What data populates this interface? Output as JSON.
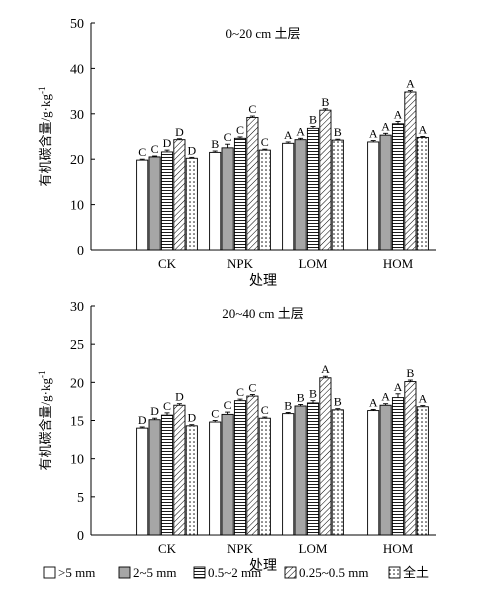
{
  "chart_data": [
    {
      "type": "bar",
      "title": "0~20 cm 土层",
      "xlabel": "处理",
      "ylabel": "有机碳含量/g·kg",
      "ylabel_sup": "-1",
      "ylim": [
        0,
        50
      ],
      "yticks": [
        0,
        10,
        20,
        30,
        40,
        50
      ],
      "categories": [
        "CK",
        "NPK",
        "LOM",
        "HOM"
      ],
      "series": [
        {
          "name": ">5 mm",
          "values": [
            19.8,
            21.5,
            23.5,
            23.8
          ],
          "errors": [
            0.2,
            0.3,
            0.3,
            0.3
          ],
          "letters": [
            "C",
            "B",
            "A",
            "A"
          ]
        },
        {
          "name": "2~5 mm",
          "values": [
            20.5,
            22.5,
            24.3,
            25.3
          ],
          "errors": [
            0.2,
            0.8,
            0.3,
            0.4
          ],
          "letters": [
            "C",
            "C",
            "A",
            "A"
          ]
        },
        {
          "name": "0.5~2 mm",
          "values": [
            21.6,
            24.6,
            26.8,
            27.8
          ],
          "errors": [
            0.4,
            0.3,
            0.4,
            0.5
          ],
          "letters": [
            "D",
            "C",
            "B",
            "A"
          ]
        },
        {
          "name": "0.25~0.5 mm",
          "values": [
            24.3,
            29.2,
            30.8,
            34.8
          ],
          "errors": [
            0.2,
            0.3,
            0.3,
            0.3
          ],
          "letters": [
            "D",
            "C",
            "B",
            "A"
          ]
        },
        {
          "name": "全土",
          "values": [
            20.2,
            22.0,
            24.2,
            24.8
          ],
          "errors": [
            0.2,
            0.2,
            0.2,
            0.2
          ],
          "letters": [
            "D",
            "C",
            "B",
            "A"
          ]
        }
      ]
    },
    {
      "type": "bar",
      "title": "20~40 cm 土层",
      "xlabel": "处理",
      "ylabel": "有机碳含量/g·kg",
      "ylabel_sup": "-1",
      "ylim": [
        0,
        30
      ],
      "yticks": [
        0,
        5,
        10,
        15,
        20,
        25,
        30
      ],
      "categories": [
        "CK",
        "NPK",
        "LOM",
        "HOM"
      ],
      "series": [
        {
          "name": ">5 mm",
          "values": [
            14.0,
            14.8,
            15.9,
            16.3
          ],
          "errors": [
            0.15,
            0.2,
            0.15,
            0.15
          ],
          "letters": [
            "D",
            "C",
            "B",
            "A"
          ]
        },
        {
          "name": "2~5 mm",
          "values": [
            15.1,
            15.8,
            16.9,
            17.0
          ],
          "errors": [
            0.2,
            0.3,
            0.2,
            0.2
          ],
          "letters": [
            "D",
            "C",
            "B",
            "A"
          ]
        },
        {
          "name": "0.5~2 mm",
          "values": [
            15.7,
            17.6,
            17.3,
            18.0
          ],
          "errors": [
            0.3,
            0.2,
            0.3,
            0.5
          ],
          "letters": [
            "C",
            "C",
            "B",
            "A"
          ]
        },
        {
          "name": "0.25~0.5 mm",
          "values": [
            17.0,
            18.2,
            20.6,
            20.1
          ],
          "errors": [
            0.2,
            0.2,
            0.2,
            0.2
          ],
          "letters": [
            "D",
            "C",
            "A",
            "B"
          ]
        },
        {
          "name": "全土",
          "values": [
            14.3,
            15.3,
            16.4,
            16.8
          ],
          "errors": [
            0.15,
            0.15,
            0.15,
            0.15
          ],
          "letters": [
            "D",
            "C",
            "B",
            "A"
          ]
        }
      ]
    }
  ],
  "legend": {
    "placement": "bottom",
    "items": [
      {
        "label": ">5 mm",
        "pattern": "white"
      },
      {
        "label": "2~5 mm",
        "pattern": "gray"
      },
      {
        "label": "0.5~2 mm",
        "pattern": "horizontal-lines"
      },
      {
        "label": "0.25~0.5 mm",
        "pattern": "diagonal-hatch"
      },
      {
        "label": "全土",
        "pattern": "dots"
      }
    ]
  },
  "colors": {
    "gray_fill": "#a6a6a6",
    "line": "#000000",
    "background": "#ffffff"
  }
}
